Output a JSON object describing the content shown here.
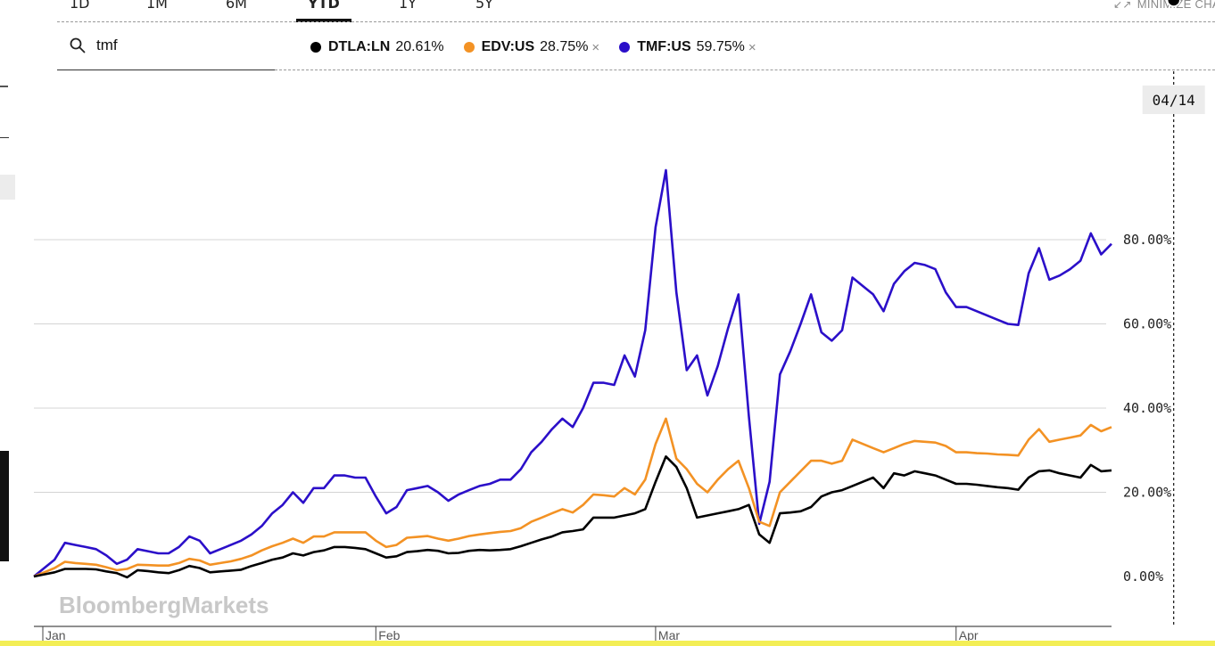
{
  "range_tabs": [
    "1D",
    "1M",
    "6M",
    "YTD",
    "1Y",
    "5Y"
  ],
  "active_tab": "YTD",
  "minimize_label": "MINIMIZE CHA",
  "search": {
    "value": "tmf",
    "placeholder": ""
  },
  "hover_date": "04/14",
  "watermark": "BloombergMarkets",
  "legend": [
    {
      "ticker": "DTLA:LN",
      "value": "20.61%",
      "color": "#000000",
      "removable": false
    },
    {
      "ticker": "EDV:US",
      "value": "28.75%",
      "color": "#f39224",
      "removable": true
    },
    {
      "ticker": "TMF:US",
      "value": "59.75%",
      "color": "#2b0fc9",
      "removable": true
    }
  ],
  "chart_data": {
    "type": "line",
    "title": "",
    "xlabel": "",
    "ylabel": "",
    "x_ticks": [
      "Jan",
      "Feb",
      "Mar",
      "Apr"
    ],
    "y_ticks": [
      "0.00%",
      "20.00%",
      "40.00%",
      "60.00%",
      "80.00%"
    ],
    "ylim": [
      -12,
      100
    ],
    "grid": true,
    "hover_index": 110,
    "series": [
      {
        "name": "TMF:US",
        "color": "#2b0fc9",
        "values": [
          0,
          2,
          4,
          8,
          7.5,
          7,
          6.5,
          5,
          3,
          4,
          6.5,
          6,
          5.5,
          5.5,
          7,
          9.5,
          8.5,
          5.5,
          6.5,
          7.5,
          8.5,
          10,
          12,
          15,
          17,
          20,
          17.5,
          21,
          21,
          24,
          24,
          23.5,
          23.5,
          19,
          15,
          16.5,
          20.5,
          21,
          21.5,
          20,
          18,
          19.5,
          20.5,
          21.5,
          22,
          23,
          23,
          25.5,
          29.5,
          32,
          35,
          37.5,
          35.5,
          40,
          46,
          46,
          45.5,
          52.5,
          47.5,
          58.5,
          83,
          96.5,
          67.5,
          49,
          52.5,
          43,
          50,
          59,
          67,
          38,
          12.5,
          22.5,
          48,
          53.5,
          60,
          67,
          58,
          56,
          58.5,
          71,
          69,
          67,
          63,
          69.5,
          72.5,
          74.5,
          74,
          73,
          67.5,
          64,
          64,
          63,
          62,
          61,
          60,
          59.75,
          72,
          78,
          70.5,
          71.5,
          73,
          75,
          81.5,
          76.5,
          79
        ]
      },
      {
        "name": "EDV:US",
        "color": "#f39224",
        "values": [
          0,
          1,
          2,
          3.5,
          3.2,
          3,
          2.8,
          2.2,
          1.5,
          1.8,
          2.8,
          2.7,
          2.6,
          2.6,
          3.2,
          4.2,
          3.8,
          2.8,
          3.2,
          3.6,
          4.2,
          5,
          6.2,
          7.2,
          8,
          9,
          8,
          9.5,
          9.5,
          10.5,
          10.5,
          10.5,
          10.5,
          8.5,
          7,
          7.5,
          9.2,
          9.4,
          9.6,
          9,
          8.5,
          9,
          9.6,
          10,
          10.3,
          10.6,
          10.8,
          11.5,
          13,
          14,
          15,
          16,
          15.2,
          17,
          19.5,
          19.3,
          19,
          21,
          19.5,
          23,
          31.5,
          37.5,
          28,
          25.5,
          22,
          20,
          23,
          25.5,
          27.5,
          21,
          13,
          12,
          20,
          22.5,
          25,
          27.5,
          27.5,
          26.8,
          27.5,
          32.5,
          31.5,
          30.5,
          29.5,
          30.5,
          31.5,
          32.2,
          32,
          31.8,
          31,
          29.5,
          29.5,
          29.3,
          29.2,
          29,
          28.9,
          28.75,
          32.5,
          35,
          32,
          32.5,
          33,
          33.5,
          36,
          34.5,
          35.5
        ]
      },
      {
        "name": "DTLA:LN",
        "color": "#000000",
        "values": [
          0,
          0.5,
          1,
          1.8,
          1.8,
          1.8,
          1.7,
          1.2,
          0.8,
          -0.2,
          1.5,
          1.3,
          1,
          0.8,
          1.5,
          2.5,
          2,
          1,
          1.2,
          1.4,
          1.6,
          2.5,
          3.2,
          4,
          4.5,
          5.5,
          5,
          5.8,
          6.2,
          7,
          7,
          6.8,
          6.5,
          5.5,
          4.5,
          4.8,
          5.8,
          6,
          6.3,
          6.1,
          5.5,
          5.6,
          6.1,
          6.3,
          6.2,
          6.3,
          6.5,
          7.2,
          8,
          8.8,
          9.5,
          10.5,
          10.8,
          11.2,
          14,
          14,
          14,
          14.5,
          15,
          16,
          22.5,
          28.5,
          26,
          21,
          14,
          14.5,
          15,
          15.5,
          16,
          17,
          10,
          8,
          15,
          15.2,
          15.5,
          16.5,
          19,
          20,
          20.5,
          21.5,
          22.5,
          23.5,
          21,
          24.5,
          24,
          25,
          24.5,
          24,
          23,
          22,
          22,
          21.8,
          21.5,
          21.2,
          21,
          20.61,
          23.5,
          25,
          25.2,
          24.5,
          24,
          23.5,
          26.5,
          25,
          25.2
        ]
      }
    ]
  }
}
